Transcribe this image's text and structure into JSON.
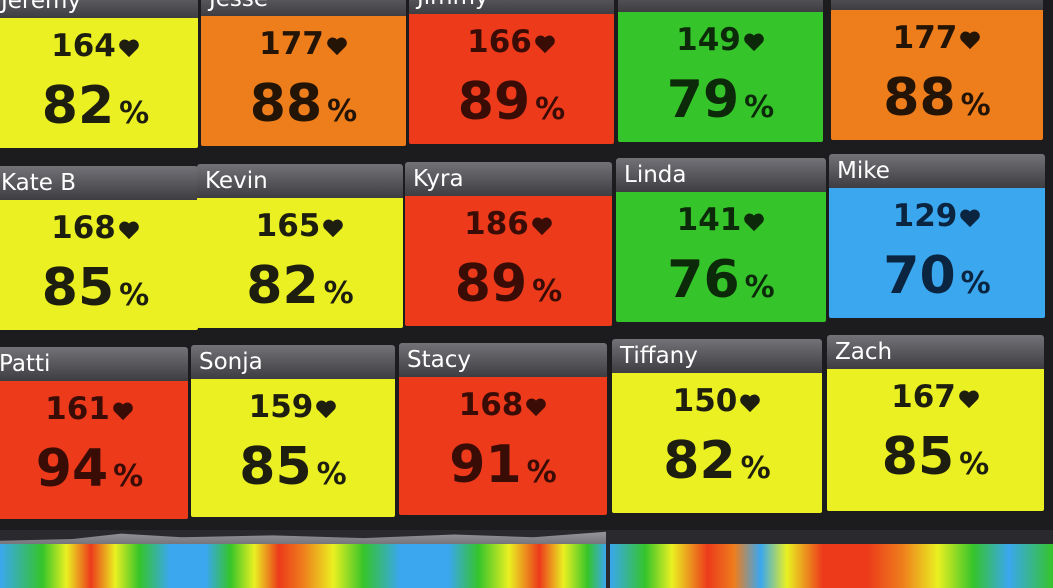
{
  "units": {
    "percent_symbol": "%"
  },
  "colors": {
    "yellow": "#eaf021",
    "orange": "#ee7d1c",
    "red": "#ec3a1b",
    "green": "#35c42a",
    "blue": "#3aa7ef",
    "header": "#5a5a5f"
  },
  "icons": {
    "heart": "heart-icon"
  },
  "tiles": [
    {
      "id": "jeremy",
      "name": "Jeremy",
      "hr": "164",
      "pct": "82",
      "zone": "yellow"
    },
    {
      "id": "jesse",
      "name": "Jesse",
      "hr": "177",
      "pct": "88",
      "zone": "orange"
    },
    {
      "id": "jimmy",
      "name": "Jimmy",
      "hr": "166",
      "pct": "89",
      "zone": "red"
    },
    {
      "id": "tile-4",
      "name": "",
      "hr": "149",
      "pct": "79",
      "zone": "green"
    },
    {
      "id": "tile-5",
      "name": "",
      "hr": "177",
      "pct": "88",
      "zone": "orange"
    },
    {
      "id": "kate-b",
      "name": "Kate B",
      "hr": "168",
      "pct": "85",
      "zone": "yellow"
    },
    {
      "id": "kevin",
      "name": "Kevin",
      "hr": "165",
      "pct": "82",
      "zone": "yellow"
    },
    {
      "id": "kyra",
      "name": "Kyra",
      "hr": "186",
      "pct": "89",
      "zone": "red"
    },
    {
      "id": "linda",
      "name": "Linda",
      "hr": "141",
      "pct": "76",
      "zone": "green"
    },
    {
      "id": "mike",
      "name": "Mike",
      "hr": "129",
      "pct": "70",
      "zone": "blue"
    },
    {
      "id": "patti",
      "name": "Patti",
      "hr": "161",
      "pct": "94",
      "zone": "red"
    },
    {
      "id": "sonja",
      "name": "Sonja",
      "hr": "159",
      "pct": "85",
      "zone": "yellow"
    },
    {
      "id": "stacy",
      "name": "Stacy",
      "hr": "168",
      "pct": "91",
      "zone": "red"
    },
    {
      "id": "tiffany",
      "name": "Tiffany",
      "hr": "150",
      "pct": "82",
      "zone": "yellow"
    },
    {
      "id": "zach",
      "name": "Zach",
      "hr": "167",
      "pct": "85",
      "zone": "yellow"
    }
  ]
}
